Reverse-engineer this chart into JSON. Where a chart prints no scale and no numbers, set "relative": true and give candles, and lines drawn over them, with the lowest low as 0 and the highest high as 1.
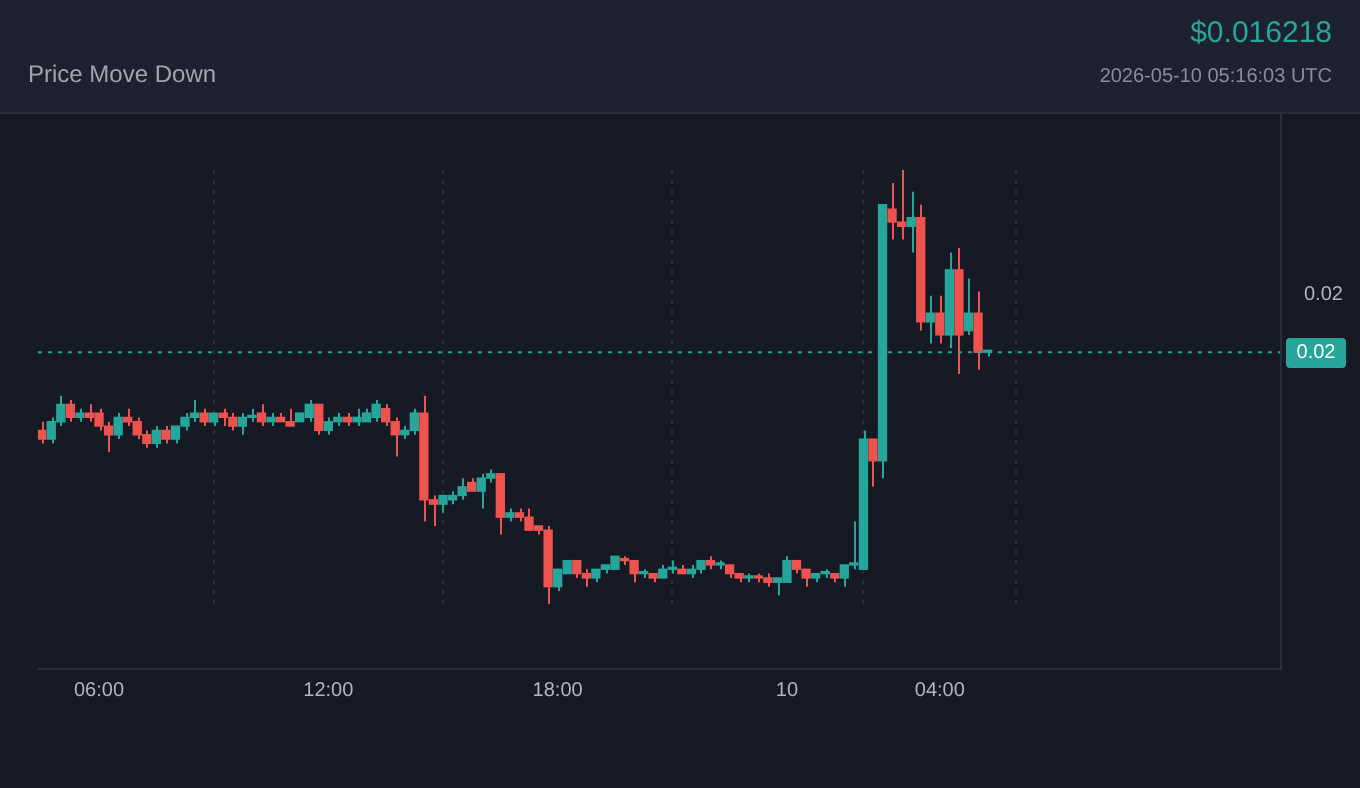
{
  "chart_data": {
    "type": "candlestick",
    "subtitle": "Price Move Down",
    "relative": true,
    "grid": "x",
    "legend": false,
    "annotations": [
      "$0.016218",
      "2026-05-10 05:16:03 UTC",
      "0.02",
      "0.02"
    ],
    "ref_lines": [
      {
        "axis": "y",
        "value": 0.58,
        "color": "#26a69a",
        "line_style": "dotted"
      }
    ],
    "xlim": [
      "2026-05-09T04:24",
      "2026-05-10T12:54"
    ],
    "xticks": [
      {
        "value": "2026-05-09T06:00",
        "label": "06:00"
      },
      {
        "value": "2026-05-09T12:00",
        "label": "12:00"
      },
      {
        "value": "2026-05-09T18:00",
        "label": "18:00"
      },
      {
        "value": "2026-05-10",
        "label": "10"
      },
      {
        "value": "2026-05-10T04:00",
        "label": "04:00"
      }
    ],
    "x": [
      "2026-05-09T04:30",
      "2026-05-09T04:45",
      "2026-05-09T05:00",
      "2026-05-09T05:15",
      "2026-05-09T05:30",
      "2026-05-09T05:45",
      "2026-05-09T06:00",
      "2026-05-09T06:15",
      "2026-05-09T06:30",
      "2026-05-09T06:45",
      "2026-05-09T07:00",
      "2026-05-09T07:15",
      "2026-05-09T07:30",
      "2026-05-09T07:45",
      "2026-05-09T08:00",
      "2026-05-09T08:15",
      "2026-05-09T08:30",
      "2026-05-09T08:45",
      "2026-05-09T09:00",
      "2026-05-09T09:15",
      "2026-05-09T09:30",
      "2026-05-09T09:45",
      "2026-05-09T10:00",
      "2026-05-09T10:15",
      "2026-05-09T10:30",
      "2026-05-09T10:45",
      "2026-05-09T11:00",
      "2026-05-09T11:15",
      "2026-05-09T11:30",
      "2026-05-09T11:45",
      "2026-05-09T12:00",
      "2026-05-09T12:15",
      "2026-05-09T12:30",
      "2026-05-09T12:45",
      "2026-05-09T13:00",
      "2026-05-09T13:15",
      "2026-05-09T13:30",
      "2026-05-09T13:45",
      "2026-05-09T14:00",
      "2026-05-09T14:15",
      "2026-05-09T14:30",
      "2026-05-09T14:45",
      "2026-05-09T15:00",
      "2026-05-09T15:15",
      "2026-05-09T15:30",
      "2026-05-09T15:45",
      "2026-05-09T16:00",
      "2026-05-09T16:15",
      "2026-05-09T16:30",
      "2026-05-09T16:45",
      "2026-05-09T17:00",
      "2026-05-09T17:15",
      "2026-05-09T17:30",
      "2026-05-09T17:45",
      "2026-05-09T18:00",
      "2026-05-09T18:15",
      "2026-05-09T18:30",
      "2026-05-09T18:45",
      "2026-05-09T19:00",
      "2026-05-09T19:15",
      "2026-05-09T19:30",
      "2026-05-09T19:45",
      "2026-05-09T20:00",
      "2026-05-09T20:15",
      "2026-05-09T20:30",
      "2026-05-09T20:45",
      "2026-05-09T21:00",
      "2026-05-09T21:15",
      "2026-05-09T21:30",
      "2026-05-09T21:45",
      "2026-05-09T22:00",
      "2026-05-09T22:15",
      "2026-05-09T22:30",
      "2026-05-09T22:45",
      "2026-05-09T23:00",
      "2026-05-09T23:15",
      "2026-05-09T23:30",
      "2026-05-09T23:45",
      "2026-05-10T00:00",
      "2026-05-10T00:15",
      "2026-05-10T00:30",
      "2026-05-10T00:45",
      "2026-05-10T01:00",
      "2026-05-10T01:15",
      "2026-05-10T01:30",
      "2026-05-10T01:45",
      "2026-05-10T02:00",
      "2026-05-10T02:15",
      "2026-05-10T02:30",
      "2026-05-10T02:45",
      "2026-05-10T03:00",
      "2026-05-10T03:15",
      "2026-05-10T03:30",
      "2026-05-10T03:45",
      "2026-05-10T04:00",
      "2026-05-10T04:15",
      "2026-05-10T04:30",
      "2026-05-10T04:45",
      "2026-05-10T05:00",
      "2026-05-10T05:15"
    ],
    "ohlc": [
      [
        0.4,
        0.42,
        0.37,
        0.38
      ],
      [
        0.38,
        0.43,
        0.37,
        0.42
      ],
      [
        0.42,
        0.48,
        0.41,
        0.46
      ],
      [
        0.46,
        0.47,
        0.42,
        0.43
      ],
      [
        0.43,
        0.45,
        0.42,
        0.44
      ],
      [
        0.44,
        0.46,
        0.42,
        0.43
      ],
      [
        0.44,
        0.45,
        0.4,
        0.41
      ],
      [
        0.41,
        0.42,
        0.35,
        0.39
      ],
      [
        0.39,
        0.44,
        0.38,
        0.43
      ],
      [
        0.43,
        0.45,
        0.41,
        0.42
      ],
      [
        0.42,
        0.43,
        0.38,
        0.39
      ],
      [
        0.39,
        0.4,
        0.36,
        0.37
      ],
      [
        0.37,
        0.41,
        0.36,
        0.4
      ],
      [
        0.4,
        0.41,
        0.37,
        0.38
      ],
      [
        0.38,
        0.41,
        0.37,
        0.41
      ],
      [
        0.41,
        0.44,
        0.4,
        0.43
      ],
      [
        0.43,
        0.47,
        0.42,
        0.44
      ],
      [
        0.44,
        0.45,
        0.41,
        0.42
      ],
      [
        0.42,
        0.44,
        0.41,
        0.44
      ],
      [
        0.44,
        0.45,
        0.41,
        0.43
      ],
      [
        0.43,
        0.44,
        0.4,
        0.41
      ],
      [
        0.41,
        0.44,
        0.39,
        0.43
      ],
      [
        0.43,
        0.45,
        0.42,
        0.43
      ],
      [
        0.44,
        0.46,
        0.41,
        0.42
      ],
      [
        0.42,
        0.44,
        0.41,
        0.43
      ],
      [
        0.43,
        0.44,
        0.42,
        0.42
      ],
      [
        0.42,
        0.45,
        0.41,
        0.41
      ],
      [
        0.42,
        0.44,
        0.42,
        0.44
      ],
      [
        0.43,
        0.47,
        0.42,
        0.46
      ],
      [
        0.46,
        0.46,
        0.39,
        0.4
      ],
      [
        0.4,
        0.43,
        0.39,
        0.42
      ],
      [
        0.42,
        0.44,
        0.41,
        0.43
      ],
      [
        0.43,
        0.44,
        0.41,
        0.42
      ],
      [
        0.42,
        0.45,
        0.41,
        0.43
      ],
      [
        0.42,
        0.45,
        0.42,
        0.44
      ],
      [
        0.43,
        0.47,
        0.42,
        0.46
      ],
      [
        0.45,
        0.46,
        0.41,
        0.42
      ],
      [
        0.42,
        0.43,
        0.34,
        0.39
      ],
      [
        0.39,
        0.41,
        0.38,
        0.4
      ],
      [
        0.4,
        0.45,
        0.39,
        0.44
      ],
      [
        0.44,
        0.48,
        0.19,
        0.24
      ],
      [
        0.24,
        0.25,
        0.18,
        0.23
      ],
      [
        0.23,
        0.25,
        0.21,
        0.25
      ],
      [
        0.24,
        0.26,
        0.23,
        0.25
      ],
      [
        0.25,
        0.29,
        0.24,
        0.27
      ],
      [
        0.28,
        0.29,
        0.26,
        0.26
      ],
      [
        0.26,
        0.3,
        0.22,
        0.29
      ],
      [
        0.29,
        0.31,
        0.28,
        0.3
      ],
      [
        0.3,
        0.3,
        0.16,
        0.2
      ],
      [
        0.2,
        0.22,
        0.19,
        0.21
      ],
      [
        0.21,
        0.22,
        0.19,
        0.2
      ],
      [
        0.2,
        0.22,
        0.17,
        0.17
      ],
      [
        0.18,
        0.18,
        0.16,
        0.17
      ],
      [
        0.17,
        0.18,
        0,
        0.04
      ],
      [
        0.04,
        0.08,
        0.03,
        0.08
      ],
      [
        0.07,
        0.1,
        0.07,
        0.1
      ],
      [
        0.1,
        0.1,
        0.06,
        0.07
      ],
      [
        0.07,
        0.08,
        0.04,
        0.06
      ],
      [
        0.06,
        0.08,
        0.05,
        0.08
      ],
      [
        0.08,
        0.09,
        0.07,
        0.09
      ],
      [
        0.08,
        0.11,
        0.08,
        0.11
      ],
      [
        0.1,
        0.11,
        0.09,
        0.1
      ],
      [
        0.1,
        0.1,
        0.05,
        0.07
      ],
      [
        0.07,
        0.08,
        0.06,
        0.07
      ],
      [
        0.07,
        0.07,
        0.05,
        0.06
      ],
      [
        0.06,
        0.09,
        0.06,
        0.08
      ],
      [
        0.08,
        0.1,
        0.07,
        0.08
      ],
      [
        0.08,
        0.09,
        0.07,
        0.07
      ],
      [
        0.07,
        0.09,
        0.06,
        0.08
      ],
      [
        0.08,
        0.1,
        0.07,
        0.1
      ],
      [
        0.1,
        0.11,
        0.08,
        0.09
      ],
      [
        0.09,
        0.1,
        0.08,
        0.09
      ],
      [
        0.09,
        0.09,
        0.06,
        0.07
      ],
      [
        0.07,
        0.07,
        0.05,
        0.06
      ],
      [
        0.06,
        0.07,
        0.05,
        0.06
      ],
      [
        0.06,
        0.07,
        0.05,
        0.06
      ],
      [
        0.06,
        0.07,
        0.04,
        0.05
      ],
      [
        0.05,
        0.06,
        0.02,
        0.06
      ],
      [
        0.05,
        0.11,
        0.05,
        0.1
      ],
      [
        0.1,
        0.1,
        0.07,
        0.08
      ],
      [
        0.08,
        0.08,
        0.04,
        0.06
      ],
      [
        0.06,
        0.07,
        0.05,
        0.07
      ],
      [
        0.07,
        0.08,
        0.06,
        0.07
      ],
      [
        0.07,
        0.07,
        0.05,
        0.06
      ],
      [
        0.06,
        0.09,
        0.04,
        0.09
      ],
      [
        0.09,
        0.19,
        0.08,
        0.09
      ],
      [
        0.08,
        0.4,
        0.08,
        0.38
      ],
      [
        0.38,
        0.38,
        0.27,
        0.33
      ],
      [
        0.33,
        0.92,
        0.29,
        0.92
      ],
      [
        0.91,
        0.97,
        0.84,
        0.88
      ],
      [
        0.88,
        1,
        0.84,
        0.87
      ],
      [
        0.87,
        0.95,
        0.81,
        0.89
      ],
      [
        0.89,
        0.92,
        0.63,
        0.65
      ],
      [
        0.65,
        0.71,
        0.6,
        0.67
      ],
      [
        0.67,
        0.71,
        0.6,
        0.62
      ],
      [
        0.62,
        0.81,
        0.59,
        0.77
      ],
      [
        0.77,
        0.82,
        0.53,
        0.62
      ],
      [
        0.63,
        0.75,
        0.62,
        0.67
      ],
      [
        0.67,
        0.72,
        0.54,
        0.58
      ],
      [
        0.58,
        0.58,
        0.57,
        0.58
      ]
    ],
    "colors": [
      "#ef5350",
      "#26a69a",
      "#26a69a",
      "#ef5350",
      "#26a69a",
      "#ef5350",
      "#ef5350",
      "#ef5350",
      "#26a69a",
      "#ef5350",
      "#ef5350",
      "#ef5350",
      "#26a69a",
      "#ef5350",
      "#26a69a",
      "#26a69a",
      "#26a69a",
      "#ef5350",
      "#26a69a",
      "#ef5350",
      "#ef5350",
      "#26a69a",
      "#26a69a",
      "#ef5350",
      "#26a69a",
      "#ef5350",
      "#ef5350",
      "#26a69a",
      "#26a69a",
      "#ef5350",
      "#26a69a",
      "#26a69a",
      "#ef5350",
      "#26a69a",
      "#26a69a",
      "#26a69a",
      "#ef5350",
      "#ef5350",
      "#26a69a",
      "#26a69a",
      "#ef5350",
      "#ef5350",
      "#26a69a",
      "#26a69a",
      "#26a69a",
      "#ef5350",
      "#26a69a",
      "#26a69a",
      "#ef5350",
      "#26a69a",
      "#ef5350",
      "#ef5350",
      "#ef5350",
      "#ef5350",
      "#26a69a",
      "#26a69a",
      "#ef5350",
      "#ef5350",
      "#26a69a",
      "#26a69a",
      "#26a69a",
      "#ef5350",
      "#ef5350",
      "#26a69a",
      "#ef5350",
      "#26a69a",
      "#26a69a",
      "#ef5350",
      "#26a69a",
      "#26a69a",
      "#ef5350",
      "#26a69a",
      "#ef5350",
      "#ef5350",
      "#26a69a",
      "#ef5350",
      "#ef5350",
      "#26a69a",
      "#26a69a",
      "#ef5350",
      "#ef5350",
      "#26a69a",
      "#26a69a",
      "#ef5350",
      "#26a69a",
      "#26a69a",
      "#26a69a",
      "#ef5350",
      "#26a69a",
      "#ef5350",
      "#ef5350",
      "#26a69a",
      "#ef5350",
      "#26a69a",
      "#ef5350",
      "#26a69a",
      "#ef5350",
      "#26a69a",
      "#ef5350",
      "#26a69a"
    ]
  }
}
